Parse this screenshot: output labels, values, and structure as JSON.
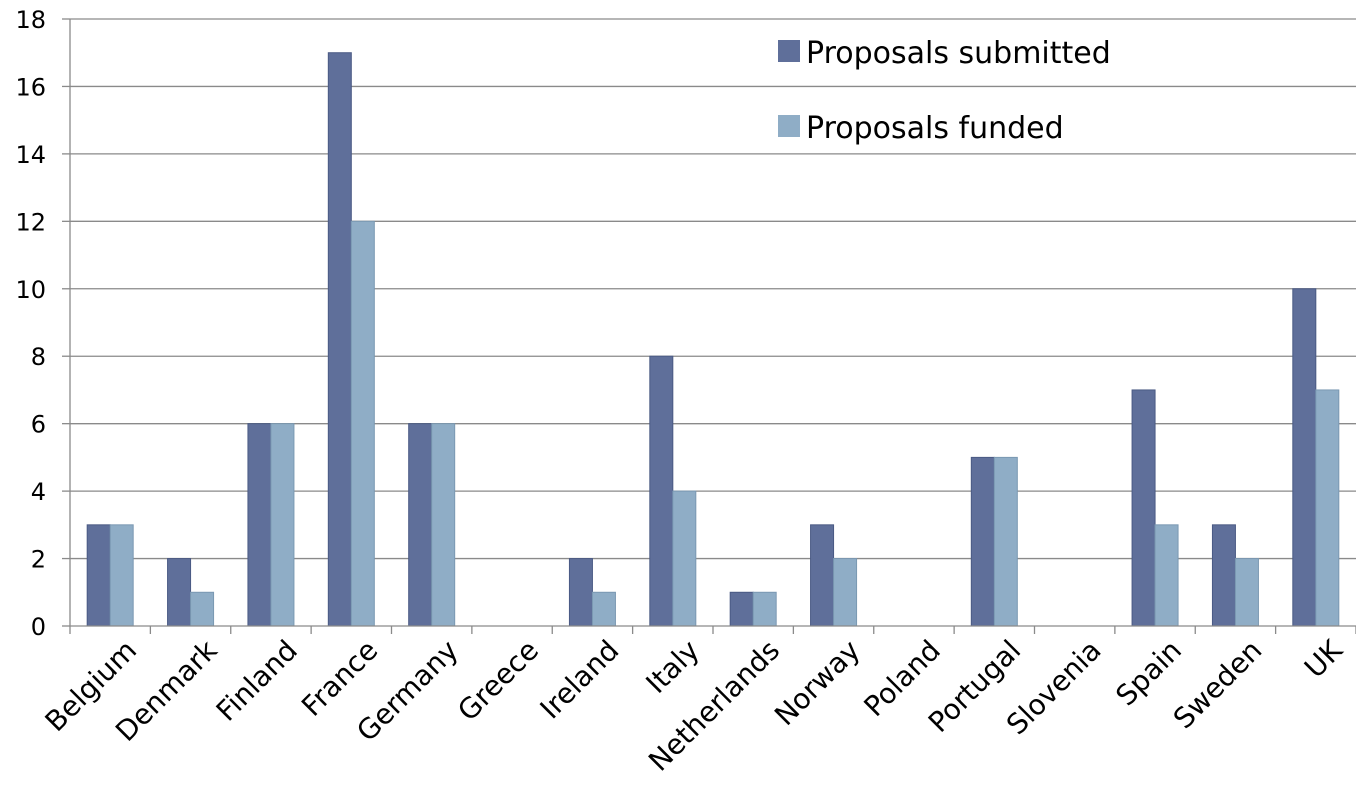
{
  "chart_data": {
    "type": "bar",
    "categories": [
      "Belgium",
      "Denmark",
      "Finland",
      "France",
      "Germany",
      "Greece",
      "Ireland",
      "Italy",
      "Netherlands",
      "Norway",
      "Poland",
      "Portugal",
      "Slovenia",
      "Spain",
      "Sweden",
      "UK"
    ],
    "series": [
      {
        "name": "Proposals submitted",
        "color": "#5f6f9a",
        "values": [
          3,
          2,
          6,
          17,
          6,
          0,
          2,
          8,
          1,
          3,
          0,
          5,
          0,
          7,
          3,
          10
        ]
      },
      {
        "name": "Proposals funded",
        "color": "#8fadc6",
        "values": [
          3,
          1,
          6,
          12,
          6,
          0,
          1,
          4,
          1,
          2,
          0,
          5,
          0,
          3,
          2,
          7
        ]
      }
    ],
    "yticks": [
      "0",
      "2",
      "4",
      "6",
      "8",
      "10",
      "12",
      "14",
      "16",
      "18"
    ],
    "ylim": [
      0,
      18
    ],
    "grid": true,
    "legend_position": "top-right",
    "title": "",
    "xlabel": "",
    "ylabel": ""
  }
}
